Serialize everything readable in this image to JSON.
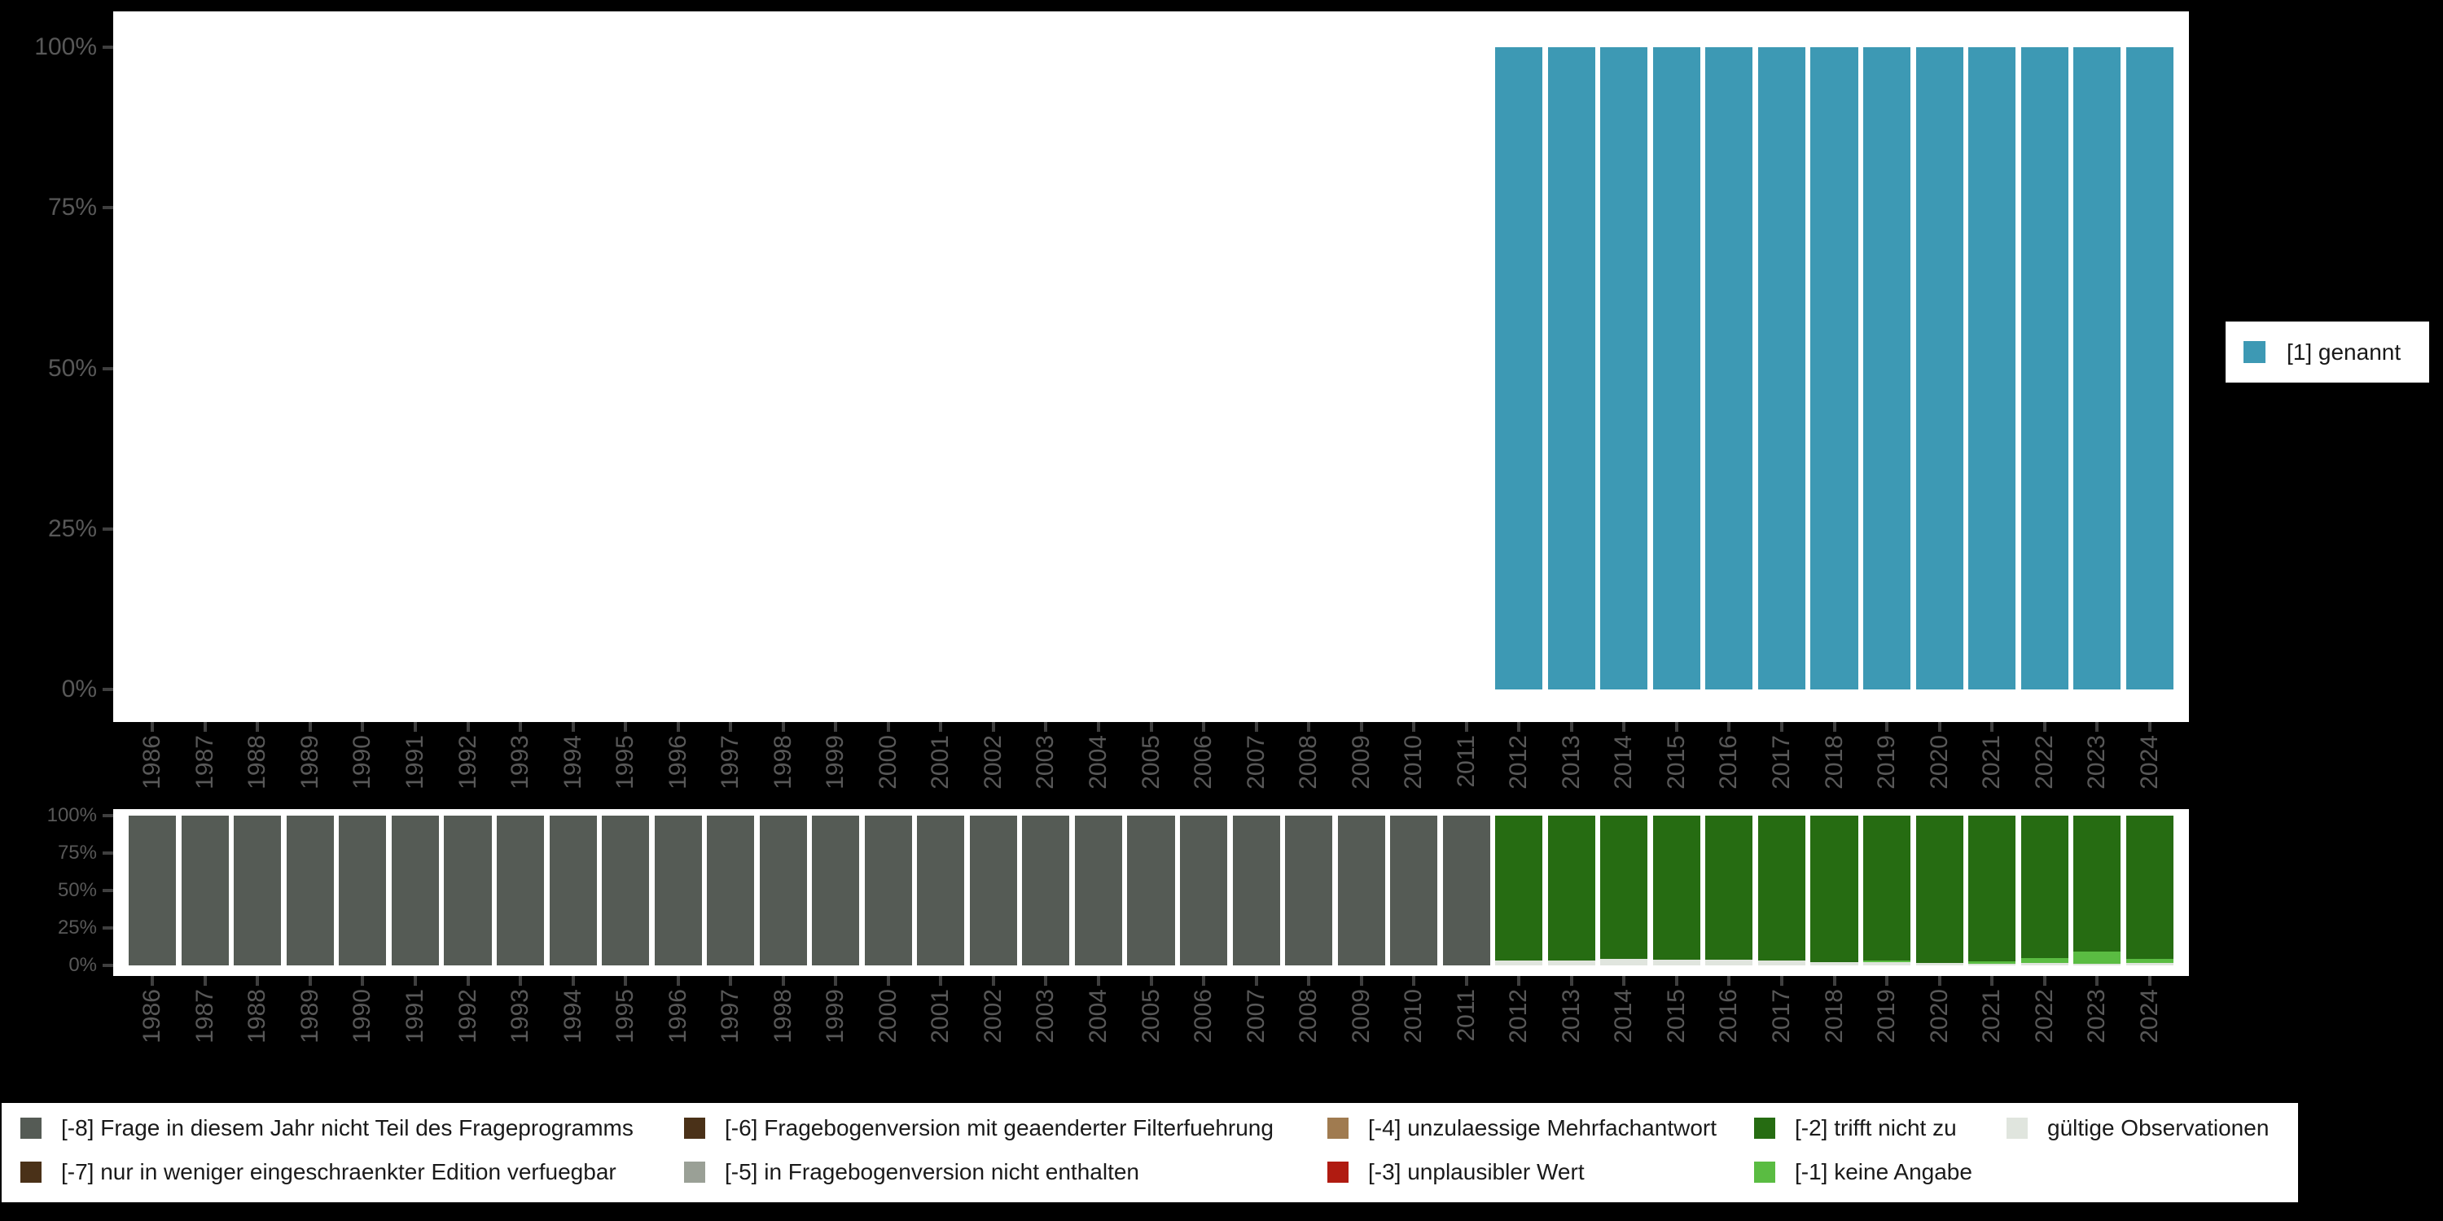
{
  "background": "#000000",
  "panel_bg": "#ffffff",
  "axis": {
    "tick_color": "#3f3f3f",
    "label_color": "#585858"
  },
  "chart_data": [
    {
      "type": "bar",
      "stacked": true,
      "title": "",
      "xlabel": "",
      "ylabel": "",
      "grid": false,
      "legend_position": "right",
      "ylim": [
        0,
        100
      ],
      "yticks": [
        0,
        25,
        50,
        75,
        100
      ],
      "ytick_labels": [
        "0%",
        "25%",
        "50%",
        "75%",
        "100%"
      ],
      "categories": [
        "1986",
        "1987",
        "1988",
        "1989",
        "1990",
        "1991",
        "1992",
        "1993",
        "1994",
        "1995",
        "1996",
        "1997",
        "1998",
        "1999",
        "2000",
        "2001",
        "2002",
        "2003",
        "2004",
        "2005",
        "2006",
        "2007",
        "2008",
        "2009",
        "2010",
        "2011",
        "2012",
        "2013",
        "2014",
        "2015",
        "2016",
        "2017",
        "2018",
        "2019",
        "2020",
        "2021",
        "2022",
        "2023",
        "2024"
      ],
      "series": [
        {
          "name": "[1] genannt",
          "color": "#3d99b4",
          "values": [
            0,
            0,
            0,
            0,
            0,
            0,
            0,
            0,
            0,
            0,
            0,
            0,
            0,
            0,
            0,
            0,
            0,
            0,
            0,
            0,
            0,
            0,
            0,
            0,
            0,
            0,
            100,
            100,
            100,
            100,
            100,
            100,
            100,
            100,
            100,
            100,
            100,
            100,
            100
          ]
        }
      ]
    },
    {
      "type": "bar",
      "stacked": true,
      "title": "",
      "xlabel": "",
      "ylabel": "",
      "grid": false,
      "legend_position": "bottom",
      "ylim": [
        0,
        100
      ],
      "yticks": [
        0,
        25,
        50,
        75,
        100
      ],
      "ytick_labels": [
        "0%",
        "25%",
        "50%",
        "75%",
        "100%"
      ],
      "categories": [
        "1986",
        "1987",
        "1988",
        "1989",
        "1990",
        "1991",
        "1992",
        "1993",
        "1994",
        "1995",
        "1996",
        "1997",
        "1998",
        "1999",
        "2000",
        "2001",
        "2002",
        "2003",
        "2004",
        "2005",
        "2006",
        "2007",
        "2008",
        "2009",
        "2010",
        "2011",
        "2012",
        "2013",
        "2014",
        "2015",
        "2016",
        "2017",
        "2018",
        "2019",
        "2020",
        "2021",
        "2022",
        "2023",
        "2024"
      ],
      "series": [
        {
          "name": "gültige Observationen",
          "color": "#e0e5de",
          "values": [
            0,
            0,
            0,
            0,
            0,
            0,
            0,
            0,
            0,
            0,
            0,
            0,
            0,
            0,
            0,
            0,
            0,
            0,
            0,
            0,
            0,
            0,
            0,
            0,
            0,
            0,
            3.4,
            3.4,
            4.2,
            3.8,
            3.8,
            3.4,
            2.2,
            2.2,
            1.4,
            1.2,
            1.4,
            1.0,
            1.4
          ]
        },
        {
          "name": "[-1] keine Angabe",
          "color": "#5abc42",
          "values": [
            0,
            0,
            0,
            0,
            0,
            0,
            0,
            0,
            0,
            0,
            0,
            0,
            0,
            0,
            0,
            0,
            0,
            0,
            0,
            0,
            0,
            0,
            0,
            0,
            0,
            0,
            0,
            0,
            0,
            0,
            0,
            0,
            0,
            0.8,
            0,
            1.4,
            3.3,
            8.4,
            2.7
          ]
        },
        {
          "name": "[-2] trifft nicht zu",
          "color": "#266c12",
          "values": [
            0,
            0,
            0,
            0,
            0,
            0,
            0,
            0,
            0,
            0,
            0,
            0,
            0,
            0,
            0,
            0,
            0,
            0,
            0,
            0,
            0,
            0,
            0,
            0,
            0,
            0,
            96.6,
            96.6,
            95.8,
            96.2,
            96.2,
            96.6,
            97.8,
            97.0,
            98.6,
            97.4,
            95.3,
            90.6,
            95.9
          ]
        },
        {
          "name": "[-8] Frage in diesem Jahr nicht Teil des Frageprogramms",
          "color": "#555b55",
          "values": [
            100,
            100,
            100,
            100,
            100,
            100,
            100,
            100,
            100,
            100,
            100,
            100,
            100,
            100,
            100,
            100,
            100,
            100,
            100,
            100,
            100,
            100,
            100,
            100,
            100,
            100,
            0,
            0,
            0,
            0,
            0,
            0,
            0,
            0,
            0,
            0,
            0,
            0,
            0
          ]
        }
      ]
    }
  ],
  "legend_top": {
    "items": [
      {
        "label": "[1] genannt",
        "color": "#3d99b4"
      }
    ]
  },
  "legend_bottom": {
    "columns": [
      {
        "items": [
          {
            "label": "[-8] Frage in diesem Jahr nicht Teil des Frageprogramms",
            "color": "#555b55"
          },
          {
            "label": "[-7] nur in weniger eingeschraenkter Edition verfuegbar",
            "color": "#4a3118"
          }
        ]
      },
      {
        "items": [
          {
            "label": "[-6] Fragebogenversion mit geaenderter Filterfuehrung",
            "color": "#4a3118"
          },
          {
            "label": "[-5] in Fragebogenversion nicht enthalten",
            "color": "#9aa096"
          }
        ]
      },
      {
        "items": [
          {
            "label": "[-4] unzulaessige Mehrfachantwort",
            "color": "#a07b50"
          },
          {
            "label": "[-3] unplausibler Wert",
            "color": "#b01b11"
          }
        ]
      },
      {
        "items": [
          {
            "label": "[-2] trifft nicht zu",
            "color": "#266c12"
          },
          {
            "label": "[-1] keine Angabe",
            "color": "#5abc42"
          }
        ]
      },
      {
        "items": [
          {
            "label": "gültige Observationen",
            "color": "#e0e5de"
          }
        ]
      }
    ]
  }
}
